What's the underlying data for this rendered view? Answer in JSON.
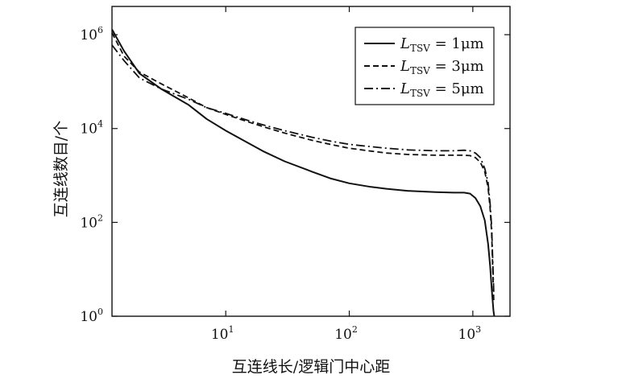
{
  "chart_data": {
    "type": "line",
    "title": "",
    "xlabel": "互连线长/逻辑门中心距",
    "ylabel": "互连线数目/个",
    "x_scale": "log",
    "y_scale": "log",
    "xlim": [
      1.2,
      2000
    ],
    "ylim": [
      1,
      4000000
    ],
    "x_ticks": [
      {
        "value": 10,
        "base": "10",
        "exp": "1"
      },
      {
        "value": 100,
        "base": "10",
        "exp": "2"
      },
      {
        "value": 1000,
        "base": "10",
        "exp": "3"
      }
    ],
    "y_ticks": [
      {
        "value": 1,
        "base": "10",
        "exp": "0"
      },
      {
        "value": 100,
        "base": "10",
        "exp": "2"
      },
      {
        "value": 10000,
        "base": "10",
        "exp": "4"
      },
      {
        "value": 1000000,
        "base": "10",
        "exp": "6"
      }
    ],
    "grid": false,
    "legend_position": "top-right",
    "series": [
      {
        "name_main": "L",
        "name_sub": "TSV",
        "name_tail": " = 1μm",
        "dash": "solid",
        "x": [
          1.2,
          1.5,
          2,
          3,
          5,
          7,
          10,
          15,
          20,
          30,
          50,
          70,
          100,
          150,
          200,
          300,
          500,
          700,
          850,
          950,
          1050,
          1150,
          1250,
          1330,
          1380,
          1420,
          1450,
          1470,
          1490
        ],
        "y": [
          1300000,
          450000,
          150000,
          70000,
          32000,
          16000,
          9000,
          5000,
          3300,
          2000,
          1200,
          870,
          680,
          570,
          520,
          470,
          440,
          430,
          430,
          410,
          330,
          220,
          110,
          35,
          12,
          4,
          2,
          1.3,
          1
        ]
      },
      {
        "name_main": "L",
        "name_sub": "TSV",
        "name_tail": " = 3μm",
        "dash": "dashed",
        "x": [
          1.2,
          1.5,
          2,
          3,
          5,
          7,
          10,
          15,
          20,
          30,
          50,
          70,
          100,
          150,
          200,
          300,
          500,
          700,
          850,
          950,
          1050,
          1150,
          1250,
          1330,
          1380,
          1420,
          1450,
          1480
        ],
        "y": [
          1100000,
          350000,
          160000,
          90000,
          45000,
          28000,
          20000,
          14000,
          11000,
          8000,
          5600,
          4600,
          3800,
          3300,
          3000,
          2800,
          2700,
          2700,
          2700,
          2650,
          2400,
          1900,
          1200,
          550,
          200,
          60,
          10,
          2
        ]
      },
      {
        "name_main": "L",
        "name_sub": "TSV",
        "name_tail": " = 5μm",
        "dash": "dashdot",
        "x": [
          1.2,
          1.5,
          2,
          3,
          5,
          7,
          10,
          15,
          20,
          30,
          50,
          70,
          100,
          150,
          200,
          300,
          500,
          700,
          850,
          950,
          1050,
          1150,
          1250,
          1330,
          1380,
          1420,
          1450,
          1480
        ],
        "y": [
          600000,
          280000,
          120000,
          70000,
          42000,
          28000,
          21000,
          15000,
          12000,
          9000,
          6500,
          5400,
          4600,
          4100,
          3800,
          3500,
          3350,
          3350,
          3450,
          3350,
          3000,
          2400,
          1400,
          700,
          250,
          80,
          15,
          3
        ]
      }
    ]
  }
}
